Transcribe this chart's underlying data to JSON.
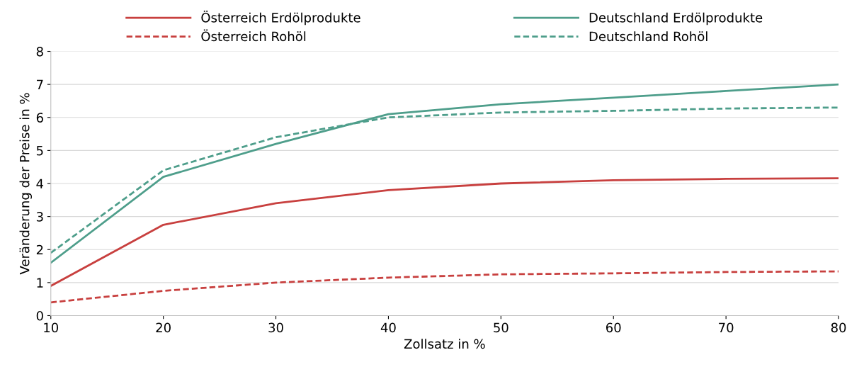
{
  "chart_data": {
    "type": "line",
    "xlabel": "Zollsatz in %",
    "ylabel": "Veränderung der Preise in %",
    "x": [
      10,
      20,
      30,
      40,
      50,
      60,
      70,
      80
    ],
    "series": [
      {
        "name": "Österreich Erdölprodukte",
        "color": "#c8403f",
        "line_style": "solid",
        "values": [
          0.9,
          2.75,
          3.4,
          3.8,
          4.0,
          4.1,
          4.14,
          4.16
        ]
      },
      {
        "name": "Österreich Rohöl",
        "color": "#c8403f",
        "line_style": "dashed",
        "values": [
          0.4,
          0.75,
          1.0,
          1.15,
          1.25,
          1.28,
          1.32,
          1.34
        ]
      },
      {
        "name": "Deutschland Erdölprodukte",
        "color": "#4e9e8b",
        "line_style": "solid",
        "values": [
          1.6,
          4.2,
          5.2,
          6.1,
          6.4,
          6.6,
          6.8,
          7.0
        ]
      },
      {
        "name": "Deutschland Rohöl",
        "color": "#4e9e8b",
        "line_style": "dashed",
        "values": [
          1.9,
          4.4,
          5.4,
          6.0,
          6.15,
          6.2,
          6.27,
          6.3
        ]
      }
    ],
    "xlim": [
      10,
      80
    ],
    "xticks": [
      10,
      20,
      30,
      40,
      50,
      60,
      70,
      80
    ],
    "ylim": [
      0,
      8
    ],
    "yticks": [
      0,
      1,
      2,
      3,
      4,
      5,
      6,
      7,
      8
    ],
    "grid": "y",
    "legend": "top",
    "marker": "none"
  }
}
